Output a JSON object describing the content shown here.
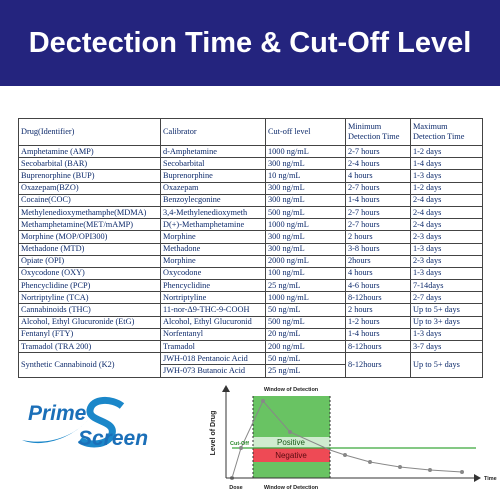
{
  "header": {
    "title": "Dectection Time & Cut-Off Level"
  },
  "table": {
    "columns": [
      "Drug(Identifier)",
      "Calibrator",
      "Cut-off level",
      "Minimum Detection Time",
      "Maximum Detection Time"
    ],
    "rows": [
      [
        "Amphetamine (AMP)",
        "d-Amphetamine",
        "1000 ng/mL",
        "2-7 hours",
        "1-2 days"
      ],
      [
        "Secobarbital (BAR)",
        "Secobarbital",
        "300 ng/mL",
        "2-4 hours",
        "1-4 days"
      ],
      [
        "Buprenorphine (BUP)",
        "Buprenorphine",
        "10 ng/mL",
        "4 hours",
        "1-3 days"
      ],
      [
        "Oxazepam(BZO)",
        "Oxazepam",
        "300 ng/mL",
        "2-7 hours",
        "1-2 days"
      ],
      [
        "Cocaine(COC)",
        "Benzoylecgonine",
        "300 ng/mL",
        "1-4 hours",
        "2-4 days"
      ],
      [
        "Methylenedioxymethamphe(MDMA)",
        "3,4-Methylenedioxymeth",
        "500 ng/mL",
        "2-7 hours",
        "2-4 days"
      ],
      [
        "Methamphetamine(MET/mAMP)",
        "D(+)-Methamphetamine",
        "1000 ng/mL",
        "2-7 hours",
        "2-4 days"
      ],
      [
        "Morphine (MOP/OPI300)",
        "Morphine",
        "300 ng/mL",
        "2 hours",
        "2-3 days"
      ],
      [
        "Methadone (MTD)",
        "Methadone",
        "300 ng/mL",
        "3-8 hours",
        "1-3 days"
      ],
      [
        "Opiate (OPI)",
        "Morphine",
        "2000 ng/mL",
        "2hours",
        "2-3 days"
      ],
      [
        "Oxycodone (OXY)",
        "Oxycodone",
        "100 ng/mL",
        "4 hours",
        "1-3 days"
      ],
      [
        "Phencyclidine (PCP)",
        "Phencyclidine",
        "25 ng/mL",
        "4-6 hours",
        "7-14days"
      ],
      [
        "Nortriptyline (TCA)",
        "Nortriptyline",
        "1000 ng/mL",
        "8-12hours",
        "2-7 days"
      ],
      [
        "Cannabinoids (THC)",
        "11-nor-Δ9-THC-9-COOH",
        "50 ng/mL",
        "2 hours",
        "Up to 5+ days"
      ],
      [
        "Alcohol, Ethyl Glucuronide (EtG)",
        "Alcohol, Ethyl Glucuronid",
        "500 ng/mL",
        "1-2 hours",
        "Up to 3+ days"
      ],
      [
        "Fentanyl (FTY)",
        "Norfentanyl",
        "20 ng/mL",
        "1-4 hours",
        "1-3 days"
      ],
      [
        "Tramadol (TRA 200)",
        "Tramadol",
        "200 ng/mL",
        "8-12hours",
        "3-7 days"
      ],
      [
        "Synthetic Cannabinoid (K2)",
        [
          "JWH-018 Pentanoic Acid",
          "JWH-073 Butanoic Acid"
        ],
        [
          "50 ng/mL",
          "25 ng/mL"
        ],
        "8-12hours",
        "Up to 5+ days"
      ]
    ]
  },
  "logo": {
    "top": "Prime",
    "bottom": "Screen"
  },
  "diagram": {
    "window_top": "Window of Detection",
    "y_label": "Level of Drug",
    "cutoff": "Cut-Off",
    "positive": "Positive",
    "negative": "Negative",
    "dose": "Dose",
    "window_bottom": "Window of Detection",
    "time": "Time"
  }
}
